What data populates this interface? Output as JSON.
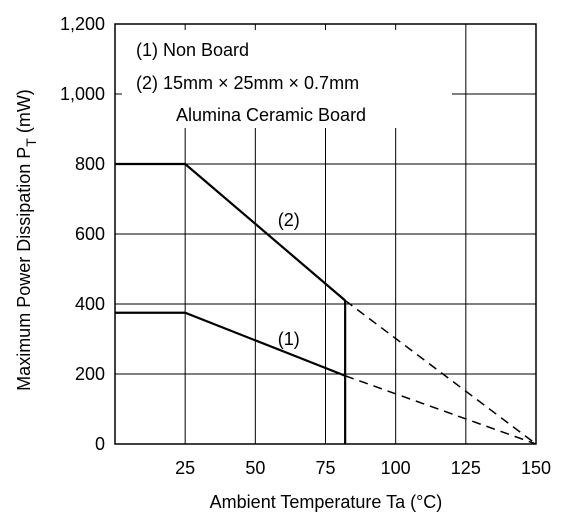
{
  "chart_data": {
    "type": "line",
    "xlabel": "Ambient Temperature  Ta  (°C)",
    "ylabel": "Maximum Power Dissipation  P",
    "ylabel_subscript": "T",
    "ylabel_unit": "  (mW)",
    "xlim": [
      0,
      150
    ],
    "ylim": [
      0,
      1200
    ],
    "x_ticks": [
      25,
      50,
      75,
      100,
      125,
      150
    ],
    "x_tick_labels": [
      "25",
      "50",
      "75",
      "100",
      "125",
      "150"
    ],
    "y_ticks": [
      0,
      200,
      400,
      600,
      800,
      1000,
      1200
    ],
    "y_tick_labels": [
      "0",
      "200",
      "400",
      "600",
      "800",
      "1,000",
      "1,200"
    ],
    "grid": true,
    "legend": {
      "placement": "top-left",
      "lines": [
        "(1) Non Board",
        "(2) 15mm × 25mm × 0.7mm",
        "Alumina Ceramic Board"
      ]
    },
    "series": [
      {
        "label": "(1)",
        "solid": [
          {
            "x": 0,
            "y": 375
          },
          {
            "x": 25,
            "y": 375
          },
          {
            "x": 82,
            "y": 195
          }
        ],
        "dashed": [
          {
            "x": 82,
            "y": 195
          },
          {
            "x": 150,
            "y": 0
          }
        ],
        "label_at": {
          "x": 58,
          "y": 300
        }
      },
      {
        "label": "(2)",
        "solid": [
          {
            "x": 0,
            "y": 800
          },
          {
            "x": 25,
            "y": 800
          },
          {
            "x": 82,
            "y": 410
          }
        ],
        "dashed": [
          {
            "x": 82,
            "y": 410
          },
          {
            "x": 150,
            "y": 0
          }
        ],
        "label_at": {
          "x": 58,
          "y": 640
        }
      }
    ],
    "marker_line": {
      "x": 82,
      "y_from": 0,
      "y_to": 410
    }
  }
}
